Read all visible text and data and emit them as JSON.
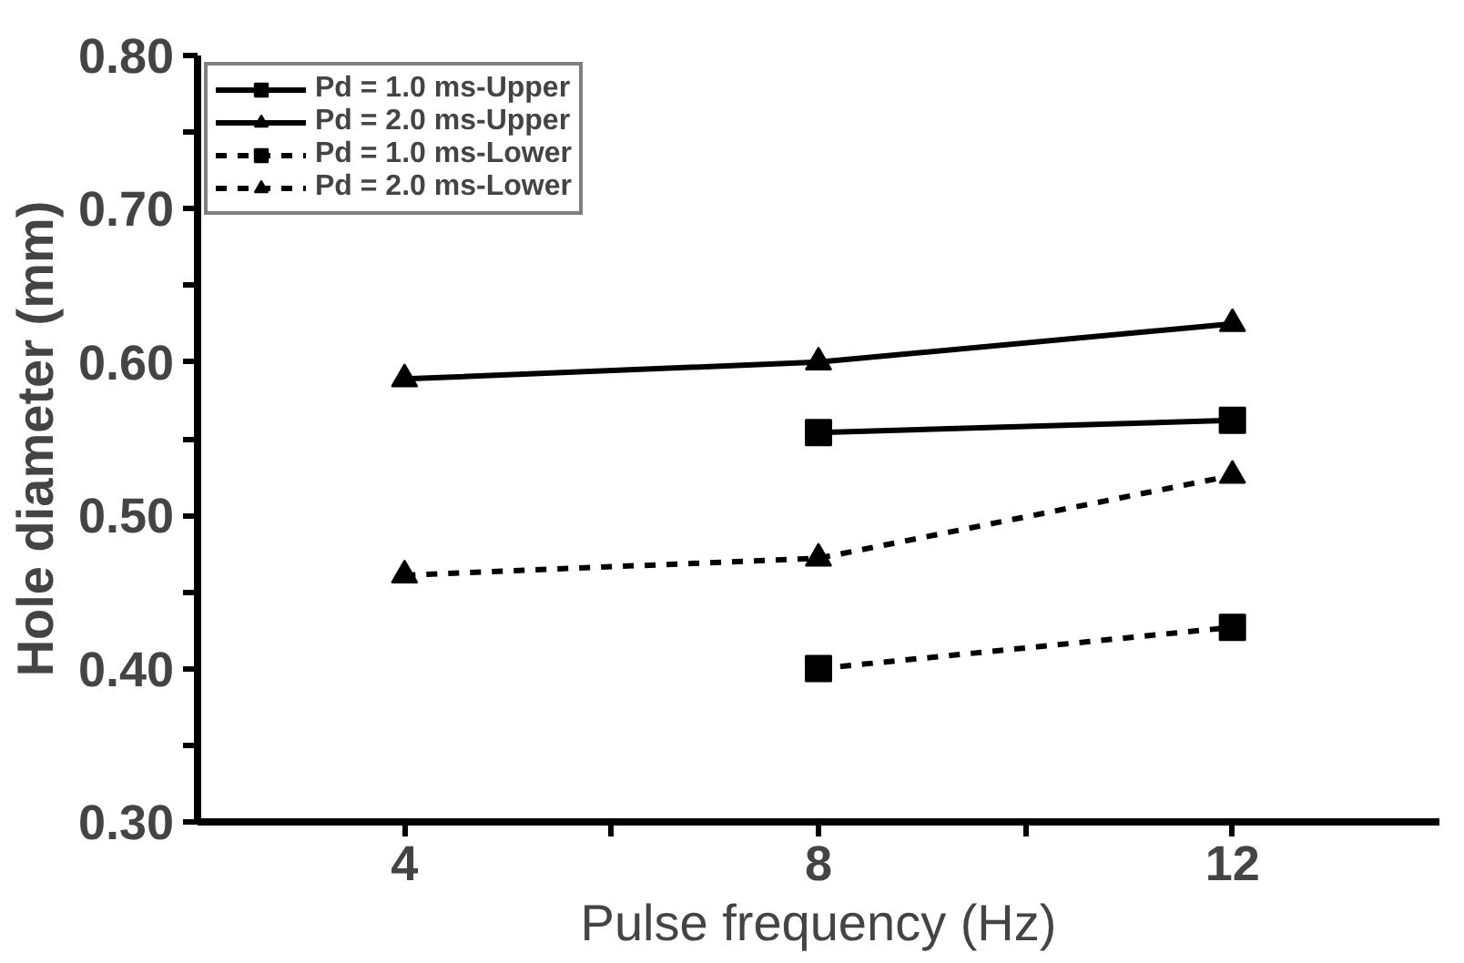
{
  "chart_data": {
    "type": "line",
    "xlabel": "Pulse frequency (Hz)",
    "ylabel": "Hole diameter (mm)",
    "xlim": [
      2,
      14
    ],
    "xticks": [
      4,
      {
        "value": 6,
        "label": null
      },
      8,
      {
        "value": 10,
        "label": null
      },
      12
    ],
    "ylim": [
      0.3,
      0.8
    ],
    "yticks": [
      {
        "value": 0.3,
        "label": "0.30"
      },
      {
        "value": 0.35,
        "label": null
      },
      {
        "value": 0.4,
        "label": "0.40"
      },
      {
        "value": 0.45,
        "label": null
      },
      {
        "value": 0.5,
        "label": "0.50"
      },
      {
        "value": 0.55,
        "label": null
      },
      {
        "value": 0.6,
        "label": "0.60"
      },
      {
        "value": 0.65,
        "label": null
      },
      {
        "value": 0.7,
        "label": "0.70"
      },
      {
        "value": 0.75,
        "label": null
      },
      {
        "value": 0.8,
        "label": "0.80"
      }
    ],
    "grid": false,
    "legend": "top left",
    "series": [
      {
        "name": "Pd = 1.0 ms-Upper",
        "color": "#000000",
        "x": [
          8,
          12
        ],
        "values": [
          0.554,
          0.562
        ],
        "marker": "square",
        "line_style": "solid"
      },
      {
        "name": "Pd = 2.0 ms-Upper",
        "color": "#000000",
        "x": [
          4,
          8,
          12
        ],
        "values": [
          0.589,
          0.6,
          0.625
        ],
        "marker": "triangle",
        "line_style": "solid"
      },
      {
        "name": "Pd = 1.0 ms-Lower",
        "color": "#000000",
        "x": [
          8,
          12
        ],
        "values": [
          0.4,
          0.427
        ],
        "marker": "square",
        "line_style": "dashed"
      },
      {
        "name": "Pd = 2.0 ms-Lower",
        "color": "#000000",
        "x": [
          4,
          8,
          12
        ],
        "values": [
          0.461,
          0.472,
          0.526
        ],
        "marker": "triangle",
        "line_style": "dashed"
      }
    ]
  }
}
